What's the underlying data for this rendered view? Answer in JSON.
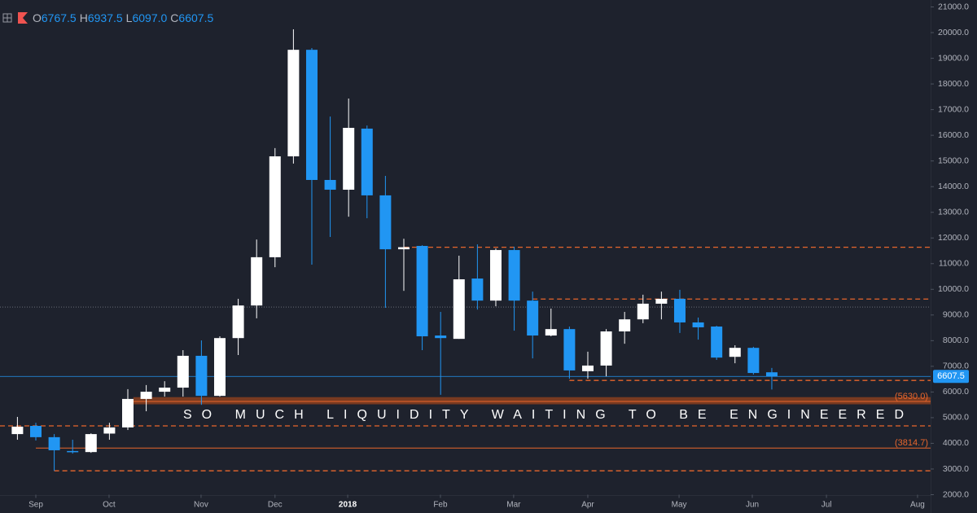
{
  "chart_data": {
    "type": "candlestick",
    "up_color": "#ffffff",
    "down_color": "#2196f3",
    "level_color": "#e8662d",
    "open": [
      4360,
      4680,
      4240,
      3700,
      3660,
      4380,
      4620,
      5730,
      6010,
      6170,
      7410,
      5850,
      8100,
      9370,
      11250,
      15180,
      19330,
      14260,
      13880,
      16260,
      13660,
      11560,
      11690,
      8200,
      8070,
      10420,
      9560,
      11530,
      9560,
      8200,
      8450,
      6810,
      7030,
      8360,
      8830,
      9440,
      9630,
      8710,
      8550,
      7370,
      7720,
      6767.5
    ],
    "high": [
      5030,
      4800,
      4360,
      4140,
      4390,
      4800,
      6110,
      6270,
      6420,
      7630,
      8010,
      8170,
      9630,
      11940,
      15500,
      20130,
      19400,
      16730,
      17430,
      16380,
      14420,
      11970,
      11720,
      9120,
      11310,
      11750,
      11590,
      11660,
      9910,
      9250,
      8550,
      7570,
      8450,
      9120,
      9790,
      9910,
      9980,
      8900,
      8580,
      7820,
      7760,
      6937.5
    ],
    "low": [
      4140,
      4110,
      2930,
      3600,
      3630,
      4140,
      4520,
      5250,
      5820,
      5820,
      5500,
      5820,
      7440,
      8870,
      10860,
      14900,
      10960,
      12040,
      12830,
      12770,
      9280,
      9940,
      7630,
      5890,
      8070,
      9210,
      9340,
      8390,
      7310,
      8170,
      6520,
      6520,
      6610,
      7880,
      8680,
      8830,
      8300,
      8040,
      7250,
      7120,
      6680,
      6097.0
    ],
    "close": [
      4650,
      4240,
      3730,
      3680,
      4360,
      4620,
      5730,
      6010,
      6170,
      7410,
      5850,
      8100,
      9370,
      11250,
      15180,
      19330,
      14260,
      13880,
      16290,
      13660,
      11560,
      11640,
      8170,
      8100,
      10390,
      9560,
      11530,
      9560,
      8200,
      8450,
      6840,
      7030,
      8360,
      8830,
      9440,
      9630,
      8710,
      8520,
      7340,
      7720,
      6740,
      6607.5
    ],
    "xlim": [
      -0.947,
      49.63
    ],
    "xticks": [
      {
        "value": 1.0,
        "label": "Sep"
      },
      {
        "value": 4.98,
        "label": "Oct"
      },
      {
        "value": 9.98,
        "label": "Nov"
      },
      {
        "value": 14.0,
        "label": "Dec"
      },
      {
        "value": 17.95,
        "label": "2018"
      },
      {
        "value": 22.99,
        "label": "Feb"
      },
      {
        "value": 26.97,
        "label": "Mar"
      },
      {
        "value": 31.0,
        "label": "Apr"
      },
      {
        "value": 35.96,
        "label": "May"
      },
      {
        "value": 39.94,
        "label": "Jun"
      },
      {
        "value": 43.97,
        "label": "Jul"
      },
      {
        "value": 48.92,
        "label": "Aug"
      }
    ],
    "ylim": [
      2000,
      21270
    ],
    "yticks": [
      {
        "value": 2000,
        "label": "2000.0"
      },
      {
        "value": 3000,
        "label": "3000.0"
      },
      {
        "value": 4000,
        "label": "4000.0"
      },
      {
        "value": 5000,
        "label": "5000.0"
      },
      {
        "value": 6000,
        "label": "6000.0"
      },
      {
        "value": 7000,
        "label": "7000.0"
      },
      {
        "value": 8000,
        "label": "8000.0"
      },
      {
        "value": 9000,
        "label": "9000.0"
      },
      {
        "value": 10000,
        "label": "10000.0"
      },
      {
        "value": 11000,
        "label": "11000.0"
      },
      {
        "value": 12000,
        "label": "12000.0"
      },
      {
        "value": 13000,
        "label": "13000.0"
      },
      {
        "value": 14000,
        "label": "14000.0"
      },
      {
        "value": 15000,
        "label": "15000.0"
      },
      {
        "value": 16000,
        "label": "16000.0"
      },
      {
        "value": 17000,
        "label": "17000.0"
      },
      {
        "value": 18000,
        "label": "18000.0"
      },
      {
        "value": 19000,
        "label": "19000.0"
      },
      {
        "value": 20000,
        "label": "20000.0"
      },
      {
        "value": 21000,
        "label": "21000.0"
      }
    ],
    "legend_readout": [
      {
        "key": "O",
        "text": "6767.5"
      },
      {
        "key": "H",
        "text": "6937.5"
      },
      {
        "key": "L",
        "text": "6097.0"
      },
      {
        "key": "C",
        "text": "6607.5"
      }
    ],
    "last_price": {
      "value": 6607.5,
      "label": "6607.5"
    },
    "reference_line": 9310,
    "dashed_levels": [
      {
        "value": 11640,
        "start": 21
      },
      {
        "value": 9620,
        "start": 28
      },
      {
        "value": 6450,
        "start": 30
      },
      {
        "value": 4680,
        "start": -0.947
      },
      {
        "value": 2930,
        "start": 2
      }
    ],
    "labeled_levels": [
      {
        "value": 3814.7,
        "label": "(3814.7)",
        "start": 1
      }
    ],
    "zone": {
      "value": 5630,
      "label": "(5630.0)",
      "low": 5520,
      "high": 5800,
      "start": 6.3
    },
    "annotation": "SO MUCH LIQUIDITY WAITING TO BE ENGINEERED"
  }
}
